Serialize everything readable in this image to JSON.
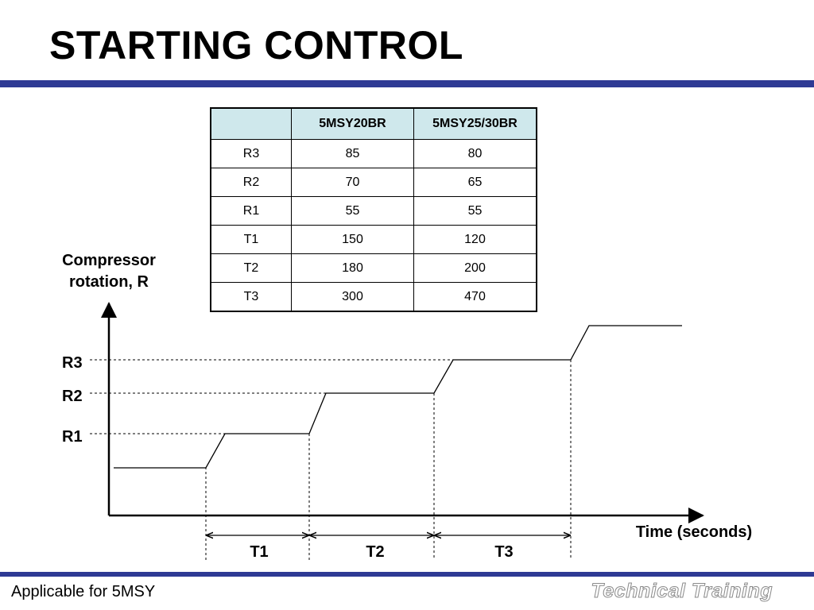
{
  "slide": {
    "title": "STARTING CONTROL",
    "footer_left": "Applicable for 5MSY",
    "footer_right": "Technical Training"
  },
  "colors": {
    "rule": "#2e3a94",
    "table_header": "#cfe8ec"
  },
  "table": {
    "headers": [
      "",
      "5MSY20BR",
      "5MSY25/30BR"
    ],
    "rows": [
      [
        "R3",
        "85",
        "80"
      ],
      [
        "R2",
        "70",
        "65"
      ],
      [
        "R1",
        "55",
        "55"
      ],
      [
        "T1",
        "150",
        "120"
      ],
      [
        "T2",
        "180",
        "200"
      ],
      [
        "T3",
        "300",
        "470"
      ]
    ]
  },
  "diagram": {
    "y_axis_label_line1": "Compressor",
    "y_axis_label_line2": "rotation, R",
    "x_axis_label": "Time (seconds)",
    "levels": [
      "R3",
      "R2",
      "R1"
    ],
    "intervals": [
      "T1",
      "T2",
      "T3"
    ]
  }
}
